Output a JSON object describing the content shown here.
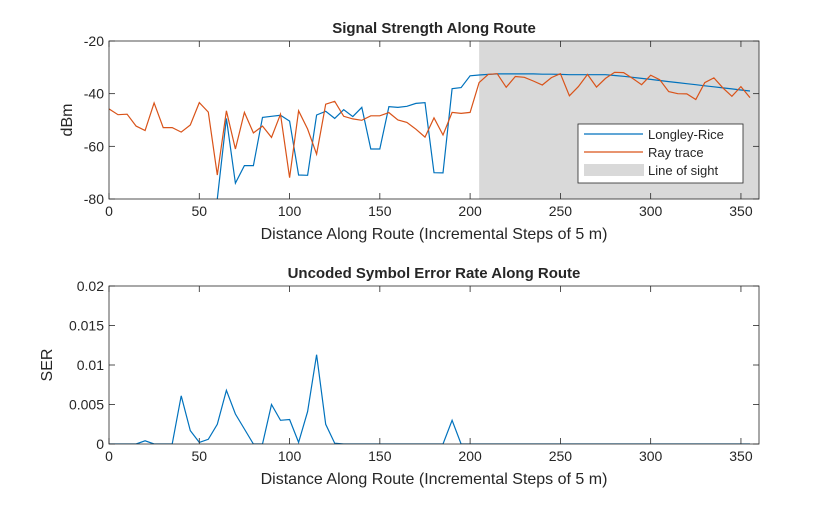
{
  "chart_data": [
    {
      "type": "line",
      "title": "Signal Strength Along Route",
      "xlabel": "Distance Along Route (Incremental Steps of 5 m)",
      "ylabel": "dBm",
      "xlim": [
        0,
        360
      ],
      "ylim": [
        -80,
        -20
      ],
      "xticks": [
        0,
        50,
        100,
        150,
        200,
        250,
        300,
        350
      ],
      "yticks": [
        -80,
        -60,
        -40,
        -20
      ],
      "x_step": 5,
      "shaded_region": {
        "name": "Line of sight",
        "from": 205,
        "to": 360,
        "color": "#d9d9d9"
      },
      "legend": {
        "placement": "bottom-right",
        "entries": [
          "Longley-Rice",
          "Ray trace",
          "Line of sight"
        ]
      },
      "series": [
        {
          "name": "Longley-Rice",
          "color": "#0072bd",
          "values": [
            null,
            null,
            null,
            null,
            null,
            null,
            null,
            null,
            null,
            null,
            null,
            -85,
            -80,
            -49.4,
            -74,
            -67.3,
            -67.3,
            -49,
            -48.6,
            -48.2,
            -50.4,
            -70.9,
            -71,
            -48.1,
            -46.7,
            -49.4,
            -46.1,
            -48.7,
            -45.2,
            -61,
            -61,
            -44.9,
            -45.2,
            -44.8,
            -43.7,
            -43.4,
            -70,
            -70.1,
            -38.1,
            -37.7,
            -33.2,
            -32.9,
            -32.7,
            -32.5,
            -32.5,
            -32.5,
            -32.5,
            -32.5,
            -32.6,
            -32.6,
            -32.7,
            -32.8,
            -32.8,
            -32.8,
            -32.8,
            -32.8,
            -33.1,
            -33.4,
            -33.8,
            -34.2,
            -34.6,
            -35,
            -35.4,
            -35.8,
            -36.2,
            -36.6,
            -37,
            -37.4,
            -37.8,
            -38.2,
            -38.6,
            -39.0
          ]
        },
        {
          "name": "Ray trace",
          "color": "#d95319",
          "values": [
            -45.8,
            -48,
            -47.8,
            -52.3,
            -54,
            -43.5,
            -52.9,
            -52.9,
            -54.6,
            -51.9,
            -43.4,
            -47,
            -70.9,
            -46.5,
            -61,
            -47.1,
            -54.9,
            -52.3,
            -56.6,
            -47.8,
            -71.9,
            -46.5,
            -53.4,
            -63,
            -44,
            -42.9,
            -48.6,
            -49.6,
            -50.1,
            -48.4,
            -48.4,
            -47.2,
            -50,
            -50.9,
            -53.5,
            -56.5,
            -49.2,
            -55.7,
            -47.1,
            -47.5,
            -47.1,
            -35.8,
            -32.7,
            -32.4,
            -37.6,
            -33.5,
            -33.8,
            -35.2,
            -36.7,
            -33.9,
            -32.4,
            -40.8,
            -37.3,
            -32.7,
            -37.5,
            -34.2,
            -31.9,
            -32,
            -34.2,
            -36.6,
            -33,
            -34.7,
            -39.2,
            -40,
            -40.1,
            -42.2,
            -35.8,
            -34,
            -37.8,
            -41,
            -37.3,
            -41.5
          ]
        }
      ]
    },
    {
      "type": "line",
      "title": "Uncoded Symbol Error Rate Along Route",
      "xlabel": "Distance Along Route (Incremental Steps of 5 m)",
      "ylabel": "SER",
      "xlim": [
        0,
        360
      ],
      "ylim": [
        0,
        0.02
      ],
      "xticks": [
        0,
        50,
        100,
        150,
        200,
        250,
        300,
        350
      ],
      "yticks": [
        0,
        0.005,
        0.01,
        0.015,
        0.02
      ],
      "ytick_labels": [
        "0",
        "0.005",
        "0.01",
        "0.015",
        "0.02"
      ],
      "x_step": 5,
      "series": [
        {
          "name": "SER",
          "color": "#0072bd",
          "values": [
            0,
            0,
            0,
            0,
            0.0004,
            0,
            0,
            0,
            0.0061,
            0.0017,
            0.0002,
            0.0006,
            0.0025,
            0.0068,
            0.0038,
            0.0019,
            0,
            0,
            0.005,
            0.003,
            0.0031,
            0.0002,
            0.0041,
            0.0113,
            0.0025,
            0.0001,
            0,
            0,
            0,
            0,
            0,
            0,
            0,
            0,
            0,
            0,
            0,
            0,
            0.003,
            0,
            0,
            0,
            0,
            0,
            0,
            0,
            0,
            0,
            0,
            0,
            0,
            0,
            0,
            0,
            0,
            0,
            0,
            0,
            0,
            0,
            0,
            0,
            0,
            0,
            0,
            0,
            0,
            0,
            0,
            0,
            0,
            0
          ]
        }
      ]
    }
  ]
}
